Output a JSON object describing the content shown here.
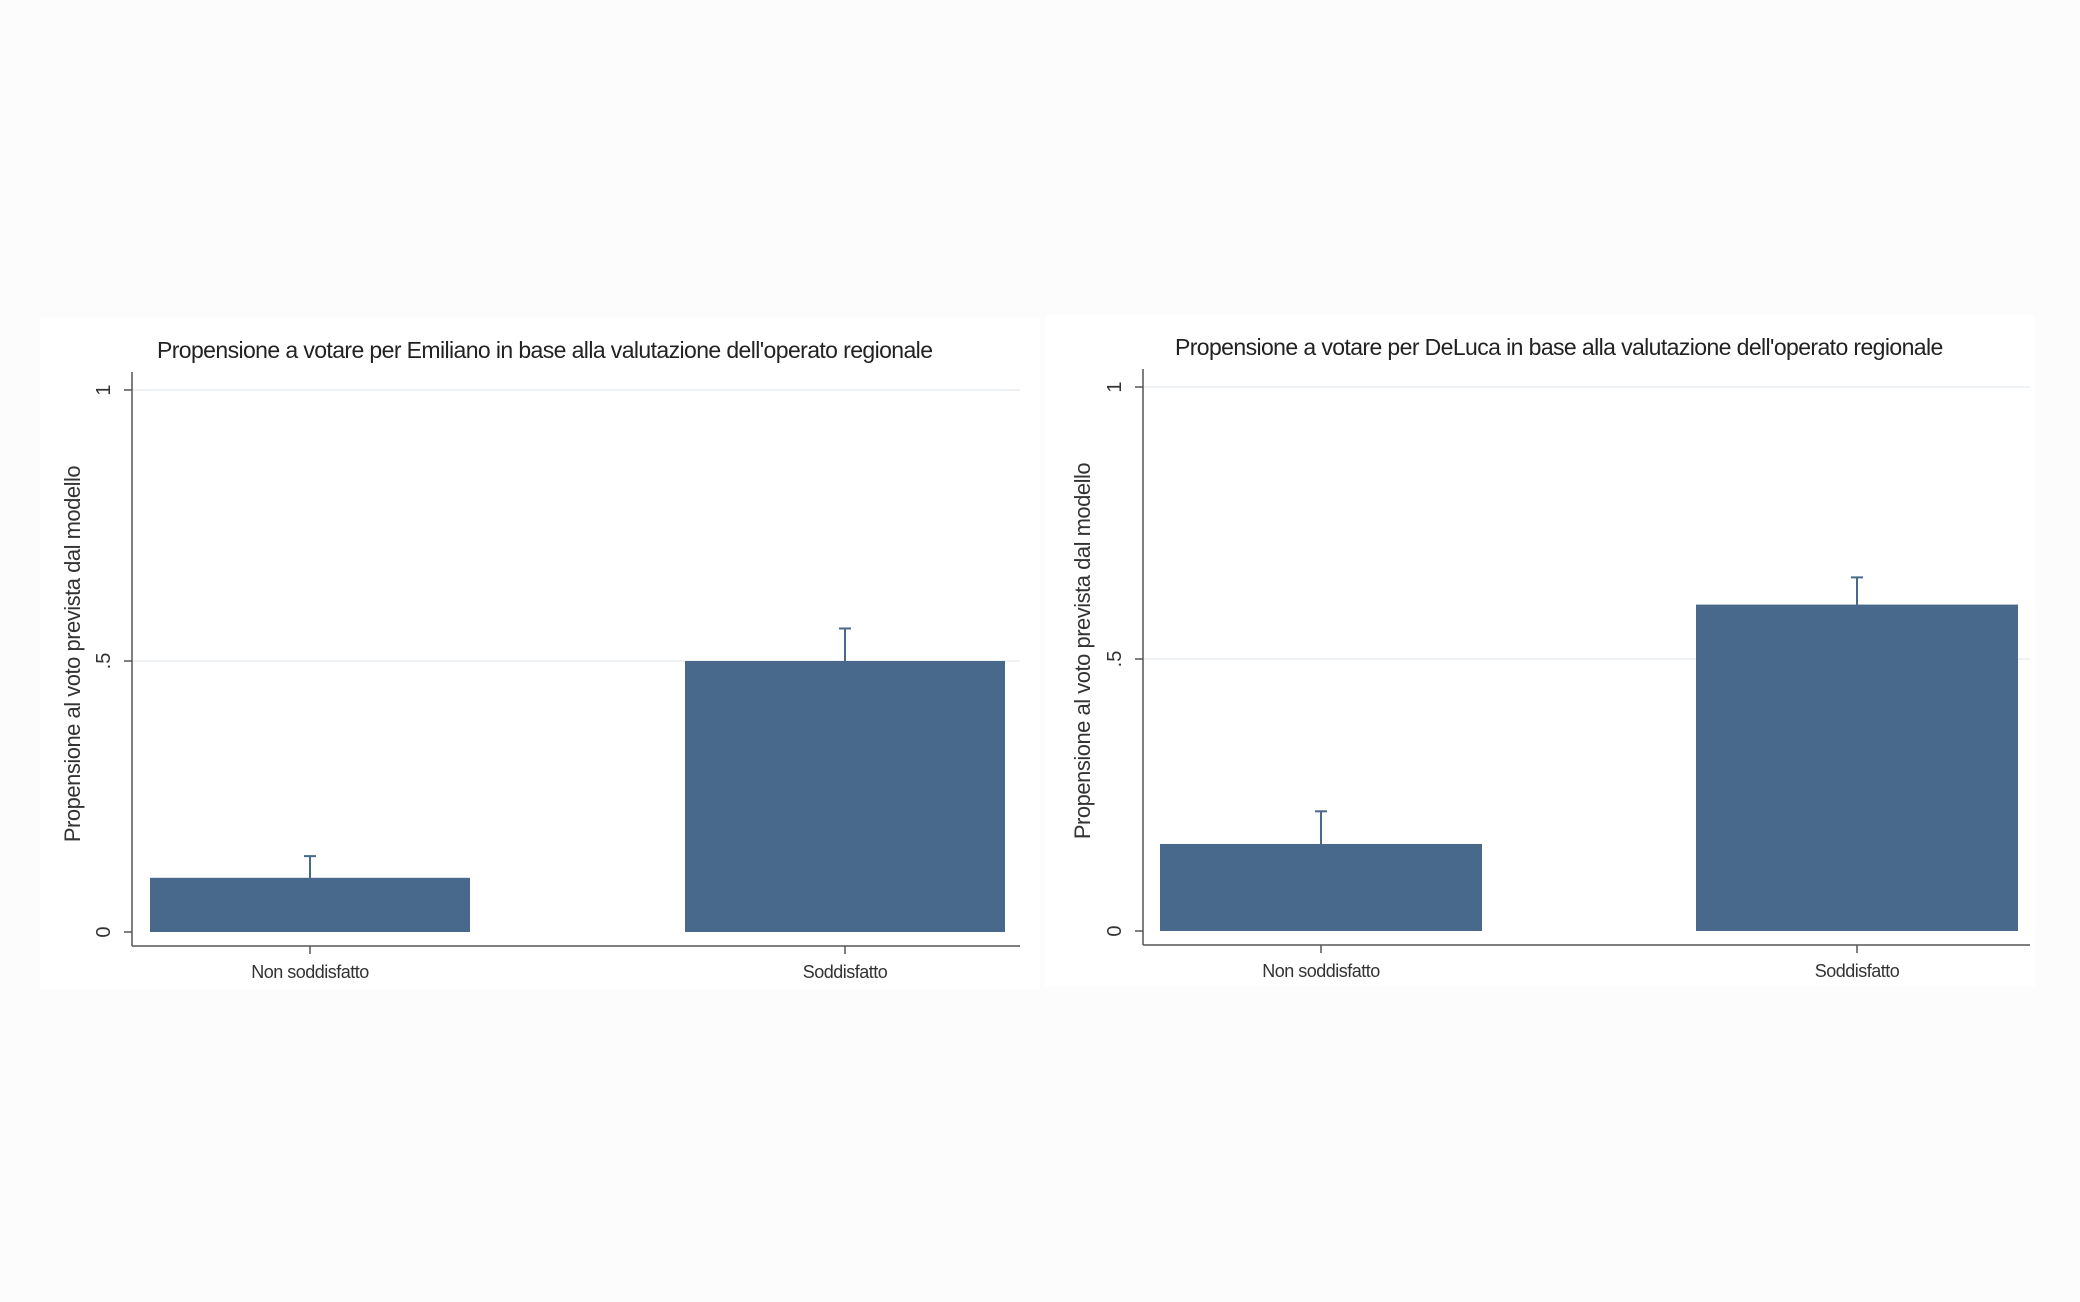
{
  "colors": {
    "bar": "#49698c",
    "axis": "#555555",
    "grid": "#eaeef2",
    "background": "#ffffff",
    "error_bar": "#49698c"
  },
  "chart_data": [
    {
      "type": "bar",
      "title": "Propensione a votare per Emiliano in base alla valutazione dell'operato regionale",
      "xlabel": "",
      "ylabel": "Propensione al voto prevista dal modello",
      "categories": [
        "Non soddisfatto",
        "Soddisfatto"
      ],
      "values": [
        0.1,
        0.5
      ],
      "error_bars": [
        [
          0.07,
          0.14
        ],
        [
          0.44,
          0.56
        ]
      ],
      "ylim": [
        0,
        1
      ],
      "yticks": [
        0,
        0.5,
        1
      ],
      "ytick_labels": [
        "0",
        ".5",
        "1"
      ],
      "grid": true
    },
    {
      "type": "bar",
      "title": "Propensione a votare per DeLuca in base alla valutazione dell'operato regionale",
      "xlabel": "",
      "ylabel": "Propensione al voto prevista dal modello",
      "categories": [
        "Non soddisfatto",
        "Soddisfatto"
      ],
      "values": [
        0.16,
        0.6
      ],
      "error_bars": [
        [
          0.1,
          0.22
        ],
        [
          0.56,
          0.65
        ]
      ],
      "ylim": [
        0,
        1
      ],
      "yticks": [
        0,
        0.5,
        1
      ],
      "ytick_labels": [
        "0",
        ".5",
        "1"
      ],
      "grid": true
    }
  ]
}
